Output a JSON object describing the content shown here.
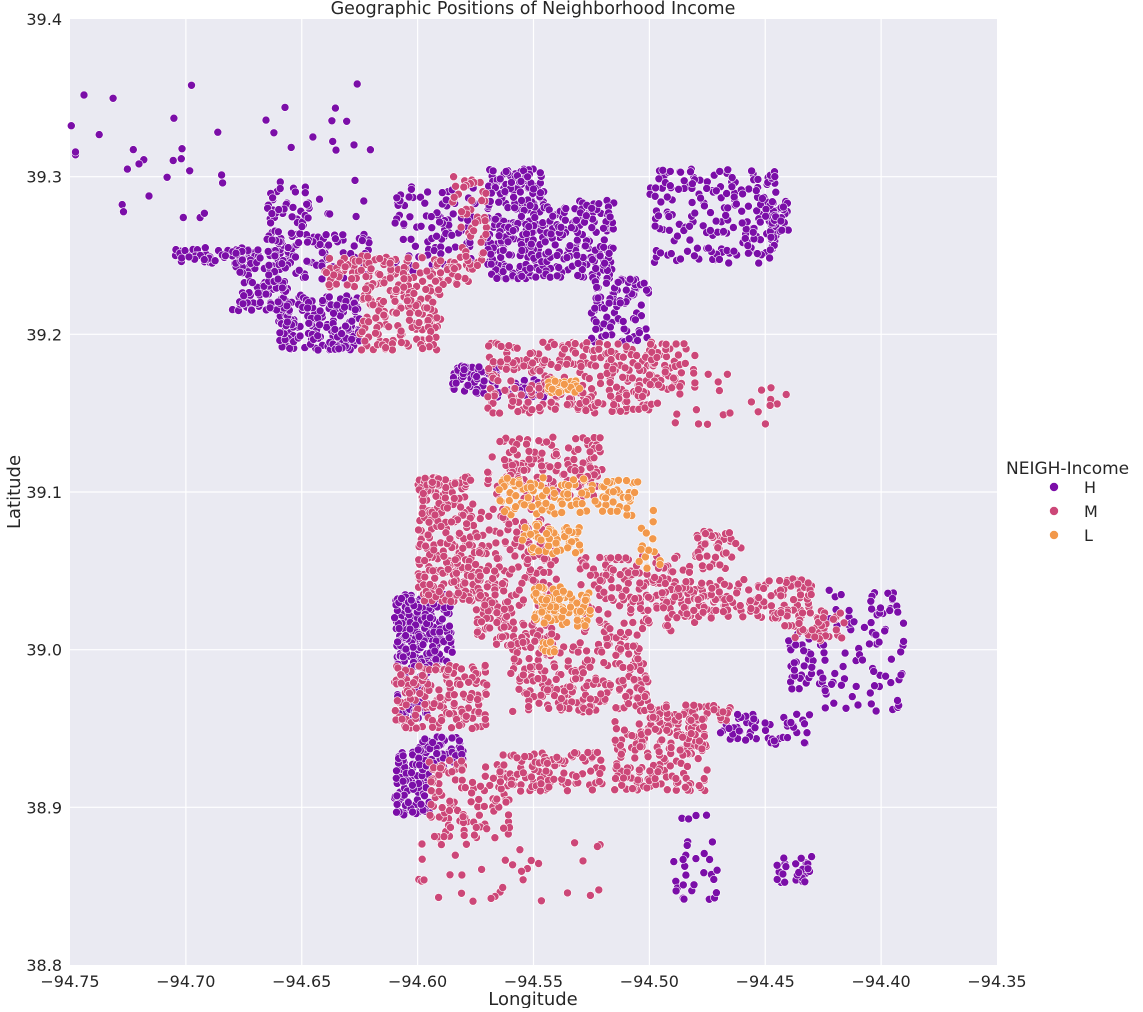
{
  "chart_data": {
    "type": "scatter",
    "title": "Geographic Positions of Neighborhood Income",
    "xlabel": "Longitude",
    "ylabel": "Latitude",
    "xlim": [
      -94.75,
      -94.35
    ],
    "ylim": [
      38.8,
      39.4
    ],
    "xticks": [
      "−94.75",
      "−94.70",
      "−94.65",
      "−94.60",
      "−94.55",
      "−94.50",
      "−94.45",
      "−94.40",
      "−94.35"
    ],
    "xtick_values": [
      -94.75,
      -94.7,
      -94.65,
      -94.6,
      -94.55,
      -94.5,
      -94.45,
      -94.4,
      -94.35
    ],
    "yticks": [
      "38.8",
      "38.9",
      "39.0",
      "39.1",
      "39.2",
      "39.3",
      "39.4"
    ],
    "ytick_values": [
      38.8,
      38.9,
      39.0,
      39.1,
      39.2,
      39.3,
      39.4
    ],
    "grid": true,
    "legend_title": "NEIGH-Income",
    "legend_position": "right",
    "colors": {
      "H": "#7b0ea8",
      "M": "#cc4778",
      "L": "#f2984b"
    },
    "series": [
      {
        "name": "H",
        "color": "#7b0ea8",
        "clusters": [
          {
            "x": [
              -94.57,
              -94.545
            ],
            "y": [
              39.235,
              39.305
            ],
            "n": 260
          },
          {
            "x": [
              -94.545,
              -94.515
            ],
            "y": [
              39.235,
              39.285
            ],
            "n": 170
          },
          {
            "x": [
              -94.61,
              -94.575
            ],
            "y": [
              39.24,
              39.295
            ],
            "n": 90
          },
          {
            "x": [
              -94.66,
              -94.625
            ],
            "y": [
              39.19,
              39.225
            ],
            "n": 200
          },
          {
            "x": [
              -94.68,
              -94.655
            ],
            "y": [
              39.215,
              39.255
            ],
            "n": 110
          },
          {
            "x": [
              -94.665,
              -94.62
            ],
            "y": [
              39.235,
              39.265
            ],
            "n": 90
          },
          {
            "x": [
              -94.705,
              -94.675
            ],
            "y": [
              39.245,
              39.255
            ],
            "n": 40
          },
          {
            "x": [
              -94.665,
              -94.645
            ],
            "y": [
              39.255,
              39.295
            ],
            "n": 50
          },
          {
            "x": [
              -94.525,
              -94.5
            ],
            "y": [
              39.195,
              39.235
            ],
            "n": 90
          },
          {
            "x": [
              -94.5,
              -94.465
            ],
            "y": [
              39.245,
              39.305
            ],
            "n": 110
          },
          {
            "x": [
              -94.465,
              -94.445
            ],
            "y": [
              39.245,
              39.305
            ],
            "n": 90
          },
          {
            "x": [
              -94.45,
              -94.44
            ],
            "y": [
              39.265,
              39.285
            ],
            "n": 30
          },
          {
            "x": [
              -94.585,
              -94.565
            ],
            "y": [
              39.16,
              39.18
            ],
            "n": 60
          },
          {
            "x": [
              -94.56,
              -94.545
            ],
            "y": [
              39.16,
              39.172
            ],
            "n": 30
          },
          {
            "x": [
              -94.61,
              -94.585
            ],
            "y": [
              38.99,
              39.035
            ],
            "n": 240
          },
          {
            "x": [
              -94.61,
              -94.595
            ],
            "y": [
              38.955,
              38.99
            ],
            "n": 50
          },
          {
            "x": [
              -94.61,
              -94.595
            ],
            "y": [
              38.895,
              38.935
            ],
            "n": 90
          },
          {
            "x": [
              -94.6,
              -94.58
            ],
            "y": [
              38.925,
              38.945
            ],
            "n": 50
          },
          {
            "x": [
              -94.47,
              -94.43
            ],
            "y": [
              38.94,
              38.96
            ],
            "n": 60
          },
          {
            "x": [
              -94.44,
              -94.425
            ],
            "y": [
              38.975,
              39.01
            ],
            "n": 40
          },
          {
            "x": [
              -94.425,
              -94.39
            ],
            "y": [
              38.96,
              39.04
            ],
            "n": 90
          },
          {
            "x": [
              -94.49,
              -94.47
            ],
            "y": [
              38.84,
              38.895
            ],
            "n": 30
          },
          {
            "x": [
              -94.445,
              -94.43
            ],
            "y": [
              38.85,
              38.87
            ],
            "n": 25
          },
          {
            "x": [
              -94.75,
              -94.62
            ],
            "y": [
              39.27,
              39.36
            ],
            "n": 50
          }
        ]
      },
      {
        "name": "M",
        "color": "#cc4778",
        "clusters": [
          {
            "x": [
              -94.64,
              -94.575
            ],
            "y": [
              39.23,
              39.25
            ],
            "n": 120
          },
          {
            "x": [
              -94.625,
              -94.59
            ],
            "y": [
              39.19,
              39.23
            ],
            "n": 140
          },
          {
            "x": [
              -94.585,
              -94.57
            ],
            "y": [
              39.24,
              39.3
            ],
            "n": 50
          },
          {
            "x": [
              -94.57,
              -94.5
            ],
            "y": [
              39.15,
              39.195
            ],
            "n": 280
          },
          {
            "x": [
              -94.5,
              -94.48
            ],
            "y": [
              39.165,
              39.195
            ],
            "n": 60
          },
          {
            "x": [
              -94.57,
              -94.52
            ],
            "y": [
              39.095,
              39.135
            ],
            "n": 140
          },
          {
            "x": [
              -94.6,
              -94.575
            ],
            "y": [
              39.03,
              39.11
            ],
            "n": 260
          },
          {
            "x": [
              -94.575,
              -94.54
            ],
            "y": [
              39.0,
              39.09
            ],
            "n": 230
          },
          {
            "x": [
              -94.56,
              -94.5
            ],
            "y": [
              38.96,
              39.01
            ],
            "n": 230
          },
          {
            "x": [
              -94.53,
              -94.48
            ],
            "y": [
              39.01,
              39.06
            ],
            "n": 170
          },
          {
            "x": [
              -94.49,
              -94.43
            ],
            "y": [
              39.02,
              39.045
            ],
            "n": 130
          },
          {
            "x": [
              -94.48,
              -94.46
            ],
            "y": [
              39.05,
              39.075
            ],
            "n": 50
          },
          {
            "x": [
              -94.61,
              -94.57
            ],
            "y": [
              38.95,
              38.99
            ],
            "n": 170
          },
          {
            "x": [
              -94.595,
              -94.56
            ],
            "y": [
              38.88,
              38.93
            ],
            "n": 110
          },
          {
            "x": [
              -94.565,
              -94.52
            ],
            "y": [
              38.91,
              38.935
            ],
            "n": 110
          },
          {
            "x": [
              -94.515,
              -94.475
            ],
            "y": [
              38.91,
              38.955
            ],
            "n": 170
          },
          {
            "x": [
              -94.5,
              -94.465
            ],
            "y": [
              38.955,
              38.965
            ],
            "n": 60
          },
          {
            "x": [
              -94.445,
              -94.415
            ],
            "y": [
              39.005,
              39.025
            ],
            "n": 50
          },
          {
            "x": [
              -94.5,
              -94.44
            ],
            "y": [
              39.14,
              39.18
            ],
            "n": 25
          },
          {
            "x": [
              -94.6,
              -94.52
            ],
            "y": [
              38.84,
              38.88
            ],
            "n": 35
          }
        ]
      },
      {
        "name": "L",
        "color": "#f2984b",
        "clusters": [
          {
            "x": [
              -94.565,
              -94.505
            ],
            "y": [
              39.085,
              39.11
            ],
            "n": 120
          },
          {
            "x": [
              -94.555,
              -94.53
            ],
            "y": [
              39.06,
              39.08
            ],
            "n": 60
          },
          {
            "x": [
              -94.55,
              -94.525
            ],
            "y": [
              39.015,
              39.04
            ],
            "n": 90
          },
          {
            "x": [
              -94.545,
              -94.53
            ],
            "y": [
              39.163,
              39.172
            ],
            "n": 25
          },
          {
            "x": [
              -94.55,
              -94.54
            ],
            "y": [
              38.998,
              39.006
            ],
            "n": 10
          },
          {
            "x": [
              -94.505,
              -94.495
            ],
            "y": [
              39.05,
              39.09
            ],
            "n": 15
          }
        ]
      }
    ]
  }
}
